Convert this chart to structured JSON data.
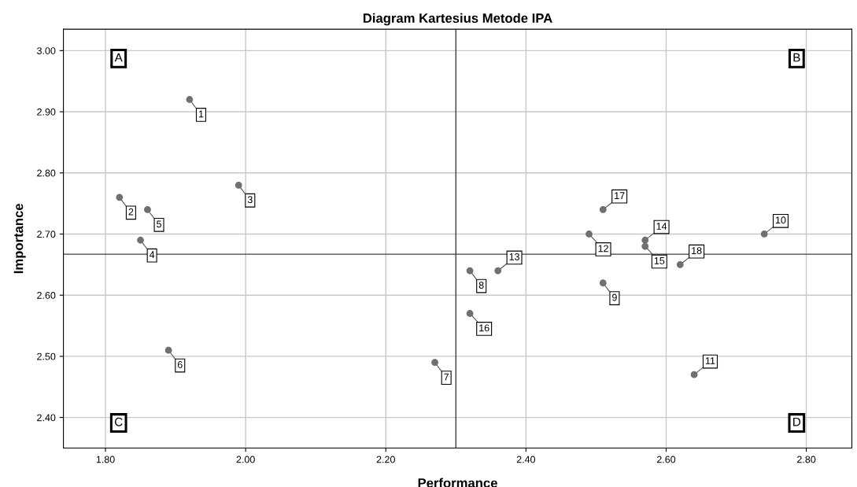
{
  "chart_data": {
    "type": "scatter",
    "title": "Diagram Kartesius Metode IPA",
    "xlabel": "Performance",
    "ylabel": "Importance",
    "x": [
      1.92,
      1.82,
      1.99,
      1.85,
      1.86,
      1.89,
      2.27,
      2.32,
      2.51,
      2.74,
      2.64,
      2.49,
      2.36,
      2.57,
      2.57,
      2.32,
      2.51,
      2.62
    ],
    "values": [
      2.92,
      2.76,
      2.78,
      2.69,
      2.74,
      2.51,
      2.49,
      2.64,
      2.62,
      2.7,
      2.47,
      2.7,
      2.64,
      2.69,
      2.68,
      2.57,
      2.74,
      2.65
    ],
    "color": "#707070",
    "marker": "circle",
    "grid": true,
    "xlim": [
      1.74,
      2.865
    ],
    "xticks": [
      {
        "value": 1.8,
        "label": "1.80"
      },
      {
        "value": 2.0,
        "label": "2.00"
      },
      {
        "value": 2.2,
        "label": "2.20"
      },
      {
        "value": 2.4,
        "label": "2.40"
      },
      {
        "value": 2.6,
        "label": "2.60"
      },
      {
        "value": 2.8,
        "label": "2.80"
      }
    ],
    "ylim": [
      2.35,
      3.035
    ],
    "yticks": [
      {
        "value": 2.4,
        "label": "2.40"
      },
      {
        "value": 2.5,
        "label": "2.50"
      },
      {
        "value": 2.6,
        "label": "2.60"
      },
      {
        "value": 2.7,
        "label": "2.70"
      },
      {
        "value": 2.8,
        "label": "2.80"
      },
      {
        "value": 2.9,
        "label": "2.90"
      },
      {
        "value": 3.0,
        "label": "3.00"
      }
    ],
    "ref_lines": [
      {
        "axis": "x",
        "value": 2.3,
        "color": "#404040"
      },
      {
        "axis": "y",
        "value": 2.667,
        "color": "#404040"
      }
    ],
    "annotations": [
      "A",
      "B",
      "C",
      "D",
      {
        "text": "1",
        "x": 1.92,
        "y": 2.92
      },
      {
        "text": "2",
        "x": 1.82,
        "y": 2.76
      },
      {
        "text": "3",
        "x": 1.99,
        "y": 2.78
      },
      {
        "text": "4",
        "x": 1.85,
        "y": 2.69
      },
      {
        "text": "5",
        "x": 1.86,
        "y": 2.74
      },
      {
        "text": "6",
        "x": 1.89,
        "y": 2.51
      },
      {
        "text": "7",
        "x": 2.27,
        "y": 2.49
      },
      {
        "text": "8",
        "x": 2.32,
        "y": 2.64
      },
      {
        "text": "9",
        "x": 2.51,
        "y": 2.62
      },
      {
        "text": "10",
        "x": 2.74,
        "y": 2.7
      },
      {
        "text": "11",
        "x": 2.64,
        "y": 2.47
      },
      {
        "text": "12",
        "x": 2.49,
        "y": 2.7
      },
      {
        "text": "13",
        "x": 2.36,
        "y": 2.64
      },
      {
        "text": "14",
        "x": 2.57,
        "y": 2.69
      },
      {
        "text": "15",
        "x": 2.57,
        "y": 2.68
      },
      {
        "text": "16",
        "x": 2.32,
        "y": 2.57
      },
      {
        "text": "17",
        "x": 2.51,
        "y": 2.74
      },
      {
        "text": "18",
        "x": 2.62,
        "y": 2.65
      }
    ]
  }
}
